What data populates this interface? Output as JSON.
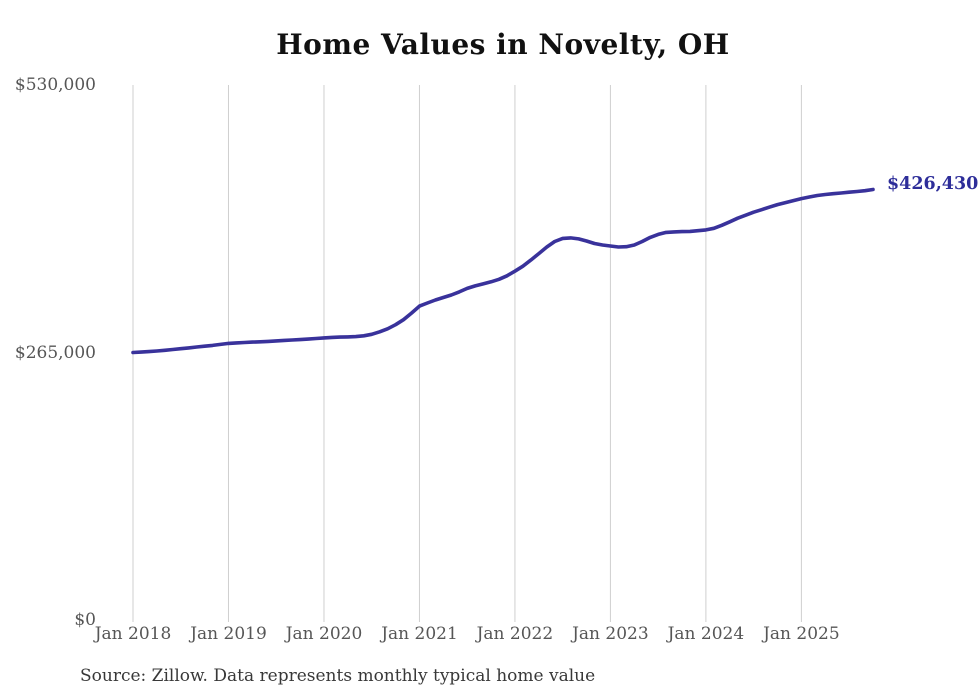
{
  "title": "Home Values in Novelty, OH",
  "latest_value_label": "$426,430",
  "source_note": "Source: Zillow. Data represents monthly typical home value",
  "colors": {
    "line": "#39329b",
    "latest_label": "#2d2d99",
    "grid": "#cfcfcf",
    "axis_text": "#565656",
    "title_text": "#111111",
    "source_text": "#383838",
    "background": "#ffffff"
  },
  "chart_data": {
    "type": "line",
    "title": "Home Values in Novelty, OH",
    "xlabel": "",
    "ylabel": "",
    "ylim": [
      0,
      530000
    ],
    "grid": "vertical-only",
    "legend": "none",
    "y_ticks": [
      {
        "label": "$530,000",
        "value": 530000
      },
      {
        "label": "$265,000",
        "value": 265000
      },
      {
        "label": "$0",
        "value": 0
      }
    ],
    "x_ticks": [
      {
        "label": "Jan 2018",
        "month_index": 0
      },
      {
        "label": "Jan 2019",
        "month_index": 12
      },
      {
        "label": "Jan 2020",
        "month_index": 24
      },
      {
        "label": "Jan 2021",
        "month_index": 36
      },
      {
        "label": "Jan 2022",
        "month_index": 48
      },
      {
        "label": "Jan 2023",
        "month_index": 60
      },
      {
        "label": "Jan 2024",
        "month_index": 72
      },
      {
        "label": "Jan 2025",
        "month_index": 84
      }
    ],
    "series": [
      {
        "name": "Monthly typical home value",
        "start_tick": "Jan 2018",
        "interval": "monthly",
        "end_value_label": "$426,430",
        "values": [
          265000,
          265400,
          265900,
          266500,
          267200,
          268000,
          268800,
          269600,
          270400,
          271200,
          272000,
          273000,
          274000,
          274500,
          274900,
          275300,
          275600,
          276000,
          276500,
          277000,
          277400,
          277800,
          278300,
          278900,
          279500,
          280000,
          280300,
          280500,
          280800,
          281500,
          283000,
          285500,
          288500,
          292500,
          297500,
          304000,
          311000,
          314000,
          317000,
          319500,
          322000,
          325000,
          328500,
          331000,
          333000,
          335000,
          337500,
          341000,
          345500,
          350500,
          356500,
          363000,
          369500,
          375000,
          378000,
          378500,
          377500,
          375500,
          373000,
          371500,
          370500,
          369500,
          369800,
          371500,
          375000,
          379000,
          382000,
          384000,
          384500,
          384800,
          385000,
          385700,
          386500,
          388000,
          391000,
          394500,
          398000,
          401000,
          404000,
          406500,
          409000,
          411500,
          413500,
          415500,
          417500,
          419000,
          420500,
          421500,
          422300,
          423000,
          423800,
          424500,
          425300,
          426430
        ]
      }
    ]
  }
}
